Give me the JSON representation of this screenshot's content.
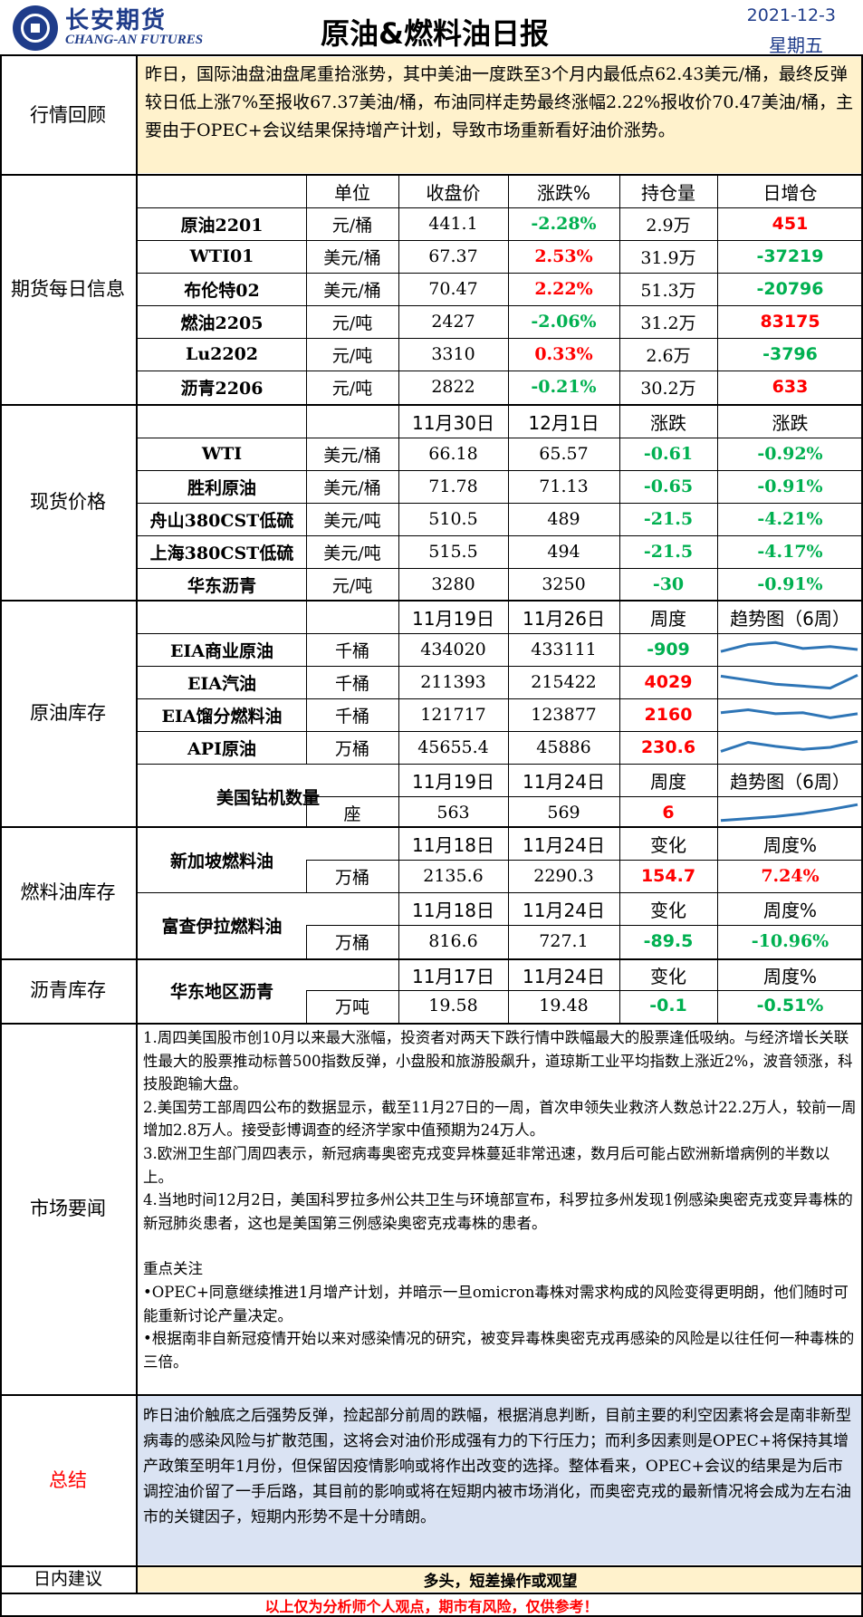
{
  "header": {
    "logo_cn": "长安期货",
    "logo_en": "CHANG-AN FUTURES",
    "title": "原油&燃料油日报",
    "date": "2021-12-3",
    "weekday": "星期五"
  },
  "review": {
    "label": "行情回顾",
    "text": "昨日，国际油盘油盘尾重拾涨势，其中美油一度跌至3个月内最低点62.43美元/桶，最终反弹较日低上涨7%至报收67.37美油/桶，布油同样走势最终涨幅2.22%报收价70.47美油/桶，主要由于OPEC+会议结果保持增产计划，导致市场重新看好油价涨势。"
  },
  "futures": {
    "label": "期货每日信息",
    "headers": [
      "单位",
      "收盘价",
      "涨跌%",
      "持仓量",
      "日增仓"
    ],
    "rows": [
      {
        "name": "原油2201",
        "unit": "元/桶",
        "close": "441.1",
        "chg": "-2.28%",
        "chg_color": "green",
        "oi": "2.9万",
        "add": "451",
        "add_color": "red"
      },
      {
        "name": "WTI01",
        "unit": "美元/桶",
        "close": "67.37",
        "chg": "2.53%",
        "chg_color": "red",
        "oi": "31.9万",
        "add": "-37219",
        "add_color": "green"
      },
      {
        "name": "布伦特02",
        "unit": "美元/桶",
        "close": "70.47",
        "chg": "2.22%",
        "chg_color": "red",
        "oi": "51.3万",
        "add": "-20796",
        "add_color": "green"
      },
      {
        "name": "燃油2205",
        "unit": "元/吨",
        "close": "2427",
        "chg": "-2.06%",
        "chg_color": "green",
        "oi": "31.2万",
        "add": "83175",
        "add_color": "red"
      },
      {
        "name": "Lu2202",
        "unit": "元/吨",
        "close": "3310",
        "chg": "0.33%",
        "chg_color": "red",
        "oi": "2.6万",
        "add": "-3796",
        "add_color": "green"
      },
      {
        "name": "沥青2206",
        "unit": "元/吨",
        "close": "2822",
        "chg": "-0.21%",
        "chg_color": "green",
        "oi": "30.2万",
        "add": "633",
        "add_color": "red"
      }
    ]
  },
  "spot": {
    "label": "现货价格",
    "headers": [
      "11月30日",
      "12月1日",
      "涨跌",
      "涨跌"
    ],
    "rows": [
      {
        "name": "WTI",
        "unit": "美元/桶",
        "d1": "66.18",
        "d2": "65.57",
        "chg": "-0.61",
        "pct": "-0.92%"
      },
      {
        "name": "胜利原油",
        "unit": "美元/桶",
        "d1": "71.78",
        "d2": "71.13",
        "chg": "-0.65",
        "pct": "-0.91%"
      },
      {
        "name": "舟山380CST低硫",
        "unit": "美元/吨",
        "d1": "510.5",
        "d2": "489",
        "chg": "-21.5",
        "pct": "-4.21%"
      },
      {
        "name": "上海380CST低硫",
        "unit": "美元/吨",
        "d1": "515.5",
        "d2": "494",
        "chg": "-21.5",
        "pct": "-4.17%"
      },
      {
        "name": "华东沥青",
        "unit": "元/吨",
        "d1": "3280",
        "d2": "3250",
        "chg": "-30",
        "pct": "-0.91%"
      }
    ]
  },
  "crude_inv": {
    "label": "原油库存",
    "headers": [
      "11月19日",
      "11月26日",
      "周度",
      "趋势图（6周）"
    ],
    "rows": [
      {
        "name": "EIA商业原油",
        "unit": "千桶",
        "d1": "434020",
        "d2": "433111",
        "chg": "-909",
        "chg_color": "green",
        "trend": [
          40,
          75,
          85,
          55,
          65,
          50
        ]
      },
      {
        "name": "EIA汽油",
        "unit": "千桶",
        "d1": "211393",
        "d2": "215422",
        "chg": "4029",
        "chg_color": "red",
        "trend": [
          80,
          60,
          40,
          30,
          20,
          85
        ]
      },
      {
        "name": "EIA馏分燃料油",
        "unit": "千桶",
        "d1": "121717",
        "d2": "123877",
        "chg": "2160",
        "chg_color": "red",
        "trend": [
          60,
          75,
          55,
          60,
          35,
          55
        ]
      },
      {
        "name": "API原油",
        "unit": "万桶",
        "d1": "45655.4",
        "d2": "45886",
        "chg": "230.6",
        "chg_color": "red",
        "trend": [
          30,
          75,
          55,
          40,
          50,
          80
        ]
      }
    ],
    "rig": {
      "name": "美国钻机数量",
      "headers": [
        "11月19日",
        "11月24日",
        "周度",
        "趋势图（6周）"
      ],
      "unit": "座",
      "d1": "563",
      "d2": "569",
      "chg": "6",
      "trend": [
        10,
        20,
        30,
        45,
        65,
        90
      ]
    }
  },
  "fuel_inv": {
    "label": "燃料油库存",
    "blocks": [
      {
        "name": "新加坡燃料油",
        "headers": [
          "11月18日",
          "11月24日",
          "变化",
          "周度%"
        ],
        "unit": "万桶",
        "d1": "2135.6",
        "d2": "2290.3",
        "chg": "154.7",
        "chg_color": "red",
        "pct": "7.24%",
        "pct_color": "red"
      },
      {
        "name": "富查伊拉燃料油",
        "headers": [
          "11月18日",
          "11月24日",
          "变化",
          "周度%"
        ],
        "unit": "万桶",
        "d1": "816.6",
        "d2": "727.1",
        "chg": "-89.5",
        "chg_color": "green",
        "pct": "-10.96%",
        "pct_color": "green"
      }
    ]
  },
  "asphalt_inv": {
    "label": "沥青库存",
    "name": "华东地区沥青",
    "headers": [
      "11月17日",
      "11月24日",
      "变化",
      "周度%"
    ],
    "unit": "万吨",
    "d1": "19.58",
    "d2": "19.48",
    "chg": "-0.1",
    "pct": "-0.51%"
  },
  "news": {
    "label": "市场要闻",
    "items": [
      "1.周四美国股市创10月以来最大涨幅，投资者对两天下跌行情中跌幅最大的股票逢低吸纳。与经济增长关联性最大的股票推动标普500指数反弹，小盘股和旅游股飙升，道琼斯工业平均指数上涨近2%，波音领涨，科技股跑输大盘。",
      "2.美国劳工部周四公布的数据显示，截至11月27日的一周，首次申领失业救济人数总计22.2万人，较前一周增加2.8万人。接受彭博调查的经济学家中值预期为24万人。",
      "3.欧洲卫生部门周四表示，新冠病毒奥密克戎变异株蔓延非常迅速，数月后可能占欧洲新增病例的半数以上。",
      "4.当地时间12月2日，美国科罗拉多州公共卫生与环境部宣布，科罗拉多州发现1例感染奥密克戎变异毒株的新冠肺炎患者，这也是美国第三例感染奥密克戎毒株的患者。"
    ],
    "focus_title": "重点关注",
    "focus": [
      "•OPEC+同意继续推进1月增产计划，并暗示一旦omicron毒株对需求构成的风险变得更明朗，他们随时可能重新讨论产量决定。",
      "•根据南非自新冠疫情开始以来对感染情况的研究，被变异毒株奥密克戎再感染的风险是以往任何一种毒株的三倍。"
    ]
  },
  "summary": {
    "label": "总结",
    "text": "昨日油价触底之后强势反弹，捡起部分前周的跌幅，根据消息判断，目前主要的利空因素将会是南非新型病毒的感染风险与扩散范围，这将会对油价形成强有力的下行压力；而利多因素则是OPEC+将保持其增产政策至明年1月份，但保留因疫情影响或将作出改变的选择。整体看来，OPEC+会议的结果是为后市调控油价留了一手后路，其目前的影响或将在短期内被市场消化，而奥密克戎的最新情况将会成为左右油市的关键因子，短期内形势不是十分晴朗。"
  },
  "advice": {
    "label": "日内建议",
    "text": "多头，短差操作或观望"
  },
  "footer": "以上仅为分析师个人观点，期市有风险，仅供参考！",
  "colors": {
    "brand": "#1f3c8a",
    "up": "#ff0000",
    "down": "#00b050",
    "review_bg": "#fff2cc",
    "summary_bg": "#dae3f3",
    "spark": "#2e75b6"
  }
}
